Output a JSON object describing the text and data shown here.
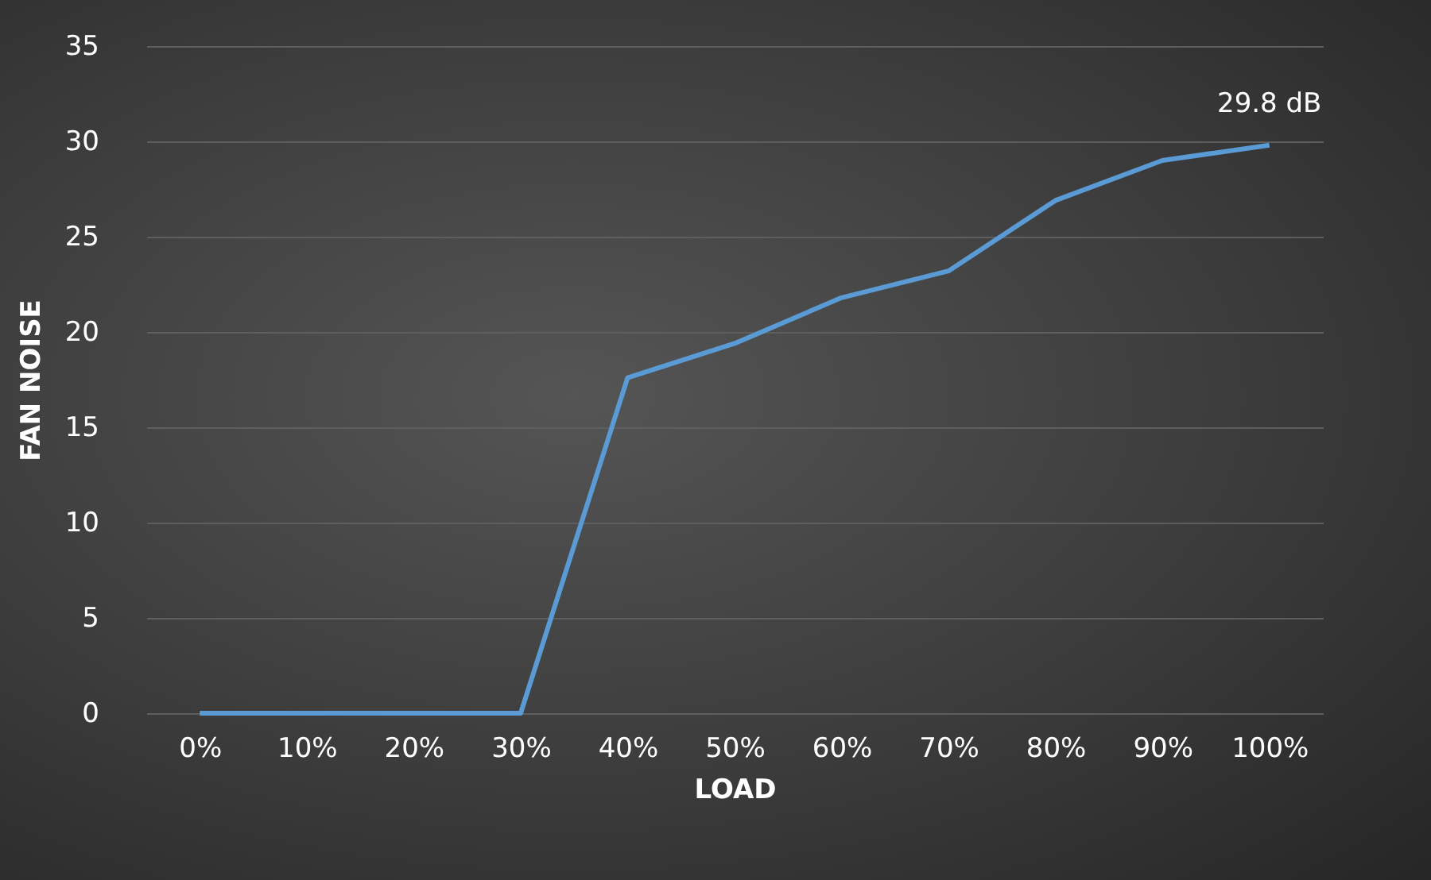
{
  "chart_data": {
    "type": "line",
    "xlabel": "LOAD",
    "ylabel": "FAN NOISE",
    "categories": [
      "0%",
      "10%",
      "20%",
      "30%",
      "40%",
      "50%",
      "60%",
      "70%",
      "80%",
      "90%",
      "100%"
    ],
    "series": [
      {
        "color": "#5b9bd5",
        "values": [
          0,
          0,
          0,
          0,
          17.6,
          19.4,
          21.8,
          23.2,
          26.9,
          29.0,
          29.8
        ]
      }
    ],
    "ylim": [
      0,
      35
    ],
    "yticks": [
      0,
      5,
      10,
      15,
      20,
      25,
      30,
      35
    ],
    "grid": "y",
    "marker": "none",
    "line_style": "solid",
    "annotations": [
      {
        "text": "29.8 dB",
        "x": "100%",
        "y": 29.8
      }
    ]
  }
}
